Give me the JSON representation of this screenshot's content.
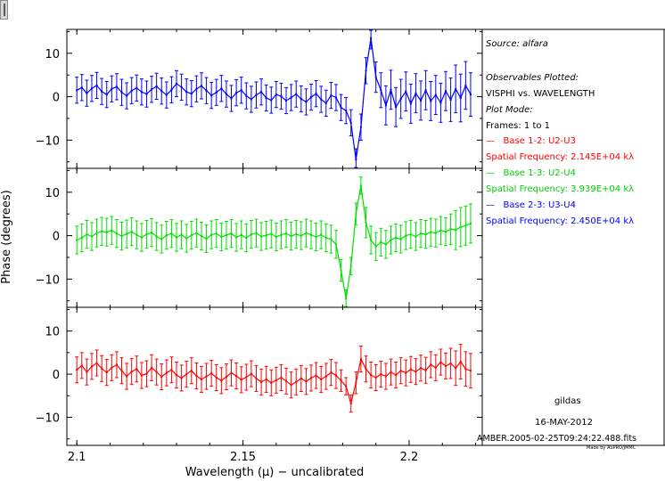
{
  "chart_data": {
    "type": "line",
    "xlabel": "Wavelength (μ) − uncalibrated",
    "ylabel": "Phase (degrees)",
    "xlim": [
      2.097,
      2.222
    ],
    "ylim": [
      -16.5,
      15.5
    ],
    "x_ticks": [
      "2.1",
      "2.15",
      "2.2"
    ],
    "y_ticks": [
      "10",
      "0",
      "−10"
    ],
    "x": [
      2.1,
      2.1015,
      2.103,
      2.1045,
      2.106,
      2.1075,
      2.109,
      2.1105,
      2.112,
      2.1135,
      2.115,
      2.1165,
      2.118,
      2.1195,
      2.121,
      2.1225,
      2.124,
      2.1255,
      2.127,
      2.1285,
      2.13,
      2.1315,
      2.133,
      2.1345,
      2.136,
      2.1375,
      2.139,
      2.1405,
      2.142,
      2.1435,
      2.145,
      2.1465,
      2.148,
      2.1495,
      2.151,
      2.1525,
      2.154,
      2.1555,
      2.157,
      2.1585,
      2.16,
      2.1615,
      2.163,
      2.1645,
      2.166,
      2.1675,
      2.169,
      2.1705,
      2.172,
      2.1735,
      2.175,
      2.1765,
      2.178,
      2.1795,
      2.181,
      2.1825,
      2.184,
      2.1855,
      2.187,
      2.1885,
      2.19,
      2.1915,
      2.193,
      2.1945,
      2.196,
      2.1975,
      2.199,
      2.2005,
      2.202,
      2.2035,
      2.205,
      2.2065,
      2.208,
      2.2095,
      2.211,
      2.2125,
      2.214,
      2.2155,
      2.217,
      2.2185
    ],
    "series": [
      {
        "name": "Base 2-3: U3-U4",
        "color": "#0000ff",
        "values": [
          1.5,
          2.1,
          0.8,
          1.9,
          2.6,
          1.2,
          0.5,
          1.8,
          2.3,
          1.0,
          0.2,
          1.4,
          2.0,
          1.1,
          0.6,
          1.7,
          2.4,
          1.3,
          0.4,
          1.6,
          3.0,
          2.2,
          1.1,
          0.7,
          1.8,
          2.5,
          1.4,
          0.3,
          1.0,
          1.9,
          0.6,
          -0.4,
          0.9,
          1.5,
          0.2,
          -0.6,
          0.4,
          1.1,
          -0.3,
          -0.8,
          0.5,
          0.1,
          -0.9,
          -0.2,
          0.6,
          -0.5,
          -1.2,
          -0.1,
          0.7,
          -0.6,
          -1.5,
          0.3,
          -0.2,
          -2.5,
          -3.2,
          -6.0,
          -14.5,
          -7.0,
          6.0,
          13.5,
          4.5,
          1.5,
          -2.0,
          1.6,
          -2.4,
          -0.5,
          1.2,
          -1.6,
          0.8,
          -0.9,
          1.5,
          -1.0,
          0.4,
          -1.4,
          1.3,
          -0.7,
          1.8,
          -0.3,
          2.6,
          0.5
        ],
        "errors": [
          3.0,
          3.0,
          3.0,
          3.0,
          3.0,
          3.0,
          3.0,
          3.0,
          3.0,
          3.0,
          3.0,
          3.0,
          3.0,
          3.0,
          3.0,
          3.0,
          3.0,
          3.0,
          3.0,
          3.0,
          3.0,
          3.0,
          3.0,
          3.0,
          3.0,
          3.0,
          3.0,
          3.0,
          3.0,
          3.0,
          3.0,
          3.0,
          3.0,
          3.0,
          3.0,
          3.0,
          3.0,
          3.0,
          3.0,
          3.0,
          3.0,
          3.0,
          3.0,
          3.0,
          3.0,
          3.0,
          3.0,
          3.0,
          3.0,
          3.0,
          3.0,
          3.0,
          3.0,
          3.0,
          3.0,
          3.0,
          2.5,
          3.0,
          3.0,
          2.5,
          3.5,
          4.0,
          4.5,
          4.5,
          4.5,
          4.5,
          4.5,
          4.5,
          4.5,
          4.5,
          4.5,
          4.5,
          4.5,
          4.5,
          4.5,
          5.0,
          5.5,
          5.5,
          5.5,
          5.0
        ]
      },
      {
        "name": "Base 1-3: U2-U4",
        "color": "#00e000",
        "values": [
          -1.0,
          -0.5,
          0.3,
          -0.2,
          0.6,
          1.0,
          0.8,
          1.2,
          0.5,
          -0.1,
          0.4,
          0.9,
          0.2,
          -0.4,
          0.3,
          0.7,
          -0.2,
          -0.8,
          0.1,
          0.5,
          -0.4,
          0.2,
          -0.6,
          0.1,
          0.6,
          -0.1,
          -0.7,
          0.2,
          0.5,
          -0.3,
          0.1,
          0.5,
          -0.4,
          0.2,
          -0.5,
          0.3,
          0.6,
          -0.2,
          0.1,
          0.4,
          -0.3,
          0.2,
          0.5,
          -0.1,
          0.3,
          0.0,
          0.6,
          0.2,
          -0.3,
          0.2,
          -0.5,
          -0.8,
          -2.0,
          -8.0,
          -14.5,
          -7.0,
          5.0,
          11.5,
          3.0,
          -1.0,
          -2.5,
          -1.5,
          -2.0,
          -1.0,
          -0.5,
          -0.8,
          0.0,
          0.3,
          -0.2,
          0.5,
          0.3,
          0.8,
          0.6,
          1.2,
          0.9,
          1.5,
          1.3,
          2.0,
          2.3,
          2.8
        ],
        "errors": [
          3.2,
          3.2,
          3.2,
          3.2,
          3.2,
          3.2,
          3.2,
          3.2,
          3.2,
          3.2,
          3.2,
          3.2,
          3.2,
          3.2,
          3.2,
          3.2,
          3.2,
          3.2,
          3.2,
          3.2,
          3.2,
          3.2,
          3.2,
          3.2,
          3.2,
          3.2,
          3.2,
          3.2,
          3.2,
          3.2,
          3.2,
          3.2,
          3.2,
          3.2,
          3.2,
          3.2,
          3.2,
          3.2,
          3.2,
          3.2,
          3.2,
          3.2,
          3.2,
          3.2,
          3.2,
          3.2,
          3.2,
          3.2,
          3.2,
          3.2,
          3.2,
          3.2,
          3.2,
          2.5,
          2.0,
          2.0,
          2.5,
          2.0,
          3.5,
          3.2,
          3.2,
          3.2,
          3.2,
          3.2,
          3.2,
          3.2,
          3.2,
          3.2,
          3.2,
          3.2,
          3.2,
          3.2,
          3.2,
          3.2,
          3.2,
          3.5,
          4.5,
          4.5,
          4.5,
          4.5
        ]
      },
      {
        "name": "Base 1-2: U2-U3",
        "color": "#ff0000",
        "values": [
          1.0,
          2.0,
          0.5,
          1.8,
          2.6,
          1.3,
          0.4,
          1.5,
          2.2,
          0.8,
          -0.5,
          0.6,
          1.2,
          -0.3,
          0.1,
          1.5,
          0.5,
          -0.6,
          0.3,
          1.0,
          -0.2,
          -0.9,
          0.0,
          0.8,
          -0.4,
          -1.2,
          -0.5,
          0.2,
          -0.8,
          -1.5,
          -0.6,
          0.3,
          -0.4,
          -1.3,
          -0.7,
          0.1,
          -1.0,
          -1.8,
          -1.2,
          -2.0,
          -1.4,
          -0.8,
          -1.6,
          -2.5,
          -1.8,
          -1.0,
          -1.7,
          -0.9,
          -0.3,
          -1.2,
          -0.5,
          0.4,
          -0.3,
          -1.5,
          -2.8,
          -6.8,
          -2.0,
          3.5,
          1.2,
          -0.2,
          -0.8,
          0.0,
          -0.5,
          0.5,
          -0.2,
          0.8,
          0.3,
          1.1,
          0.6,
          1.4,
          0.9,
          2.2,
          1.5,
          2.8,
          1.9,
          2.5,
          1.4,
          2.9,
          1.2,
          0.8
        ],
        "errors": [
          3.0,
          3.0,
          3.0,
          3.0,
          3.0,
          3.0,
          3.0,
          3.0,
          3.0,
          3.0,
          3.0,
          3.0,
          3.0,
          3.0,
          3.0,
          3.0,
          3.0,
          3.0,
          3.0,
          3.0,
          3.0,
          3.0,
          3.0,
          3.0,
          3.0,
          3.0,
          3.0,
          3.0,
          3.0,
          3.0,
          3.0,
          3.0,
          3.0,
          3.0,
          3.0,
          3.0,
          3.0,
          3.0,
          3.0,
          3.0,
          3.0,
          3.0,
          3.0,
          3.0,
          3.0,
          3.0,
          3.0,
          3.0,
          3.0,
          3.0,
          3.0,
          3.0,
          3.0,
          2.5,
          2.0,
          2.0,
          2.5,
          3.0,
          3.0,
          3.0,
          3.0,
          3.0,
          3.0,
          3.0,
          3.0,
          3.0,
          3.0,
          3.0,
          3.0,
          3.0,
          3.0,
          3.0,
          3.0,
          3.0,
          3.0,
          3.5,
          4.0,
          4.0,
          4.0,
          4.0
        ]
      }
    ]
  },
  "legend": {
    "source": "Source: alfara",
    "observables_heading": "Observables Plotted:",
    "observables": "VISPHI vs. WAVELENGTH",
    "plot_mode": "Plot Mode:",
    "frames": "Frames: 1 to 1",
    "entries": [
      {
        "line": "Base 1-2: U2-U3",
        "freq": "Spatial Frequency: 2.145E+04 kλ",
        "color": "#ff0000"
      },
      {
        "line": "Base 1-3: U2-U4",
        "freq": "Spatial Frequency: 3.939E+04 kλ",
        "color": "#00d000"
      },
      {
        "line": "Base 2-3: U3-U4",
        "freq": "Spatial Frequency: 2.450E+04 kλ",
        "color": "#0000ff"
      }
    ]
  },
  "footer": {
    "user": "gildas",
    "date": "16-MAY-2012",
    "file": "AMBER.2005-02-25T09:24:22.488.fits",
    "credit": "Made by ASPRO/JMMC"
  }
}
